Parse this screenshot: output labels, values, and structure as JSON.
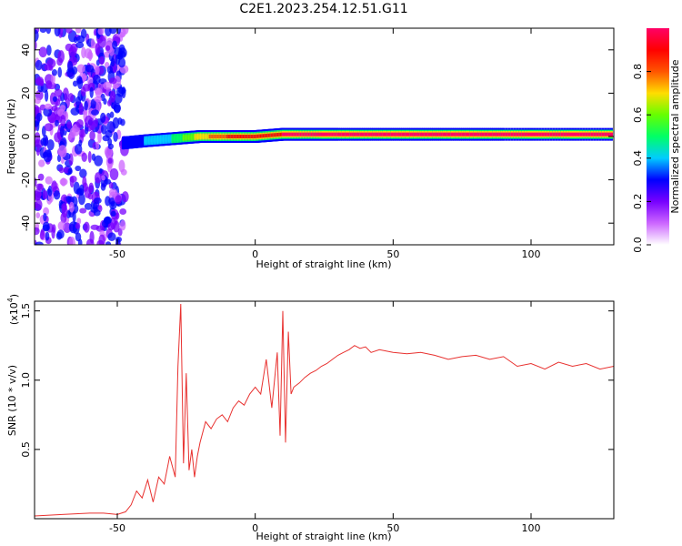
{
  "title": "C2E1.2023.254.12.51.G11",
  "chart_data": [
    {
      "type": "heatmap",
      "xlabel": "Height of straight line (km)",
      "ylabel": "Frequency (Hz)",
      "xlim": [
        -80,
        130
      ],
      "ylim": [
        -50,
        50
      ],
      "xticks": [
        -50,
        0,
        50,
        100
      ],
      "xtick_labels": [
        "-50",
        "0",
        "50",
        "100"
      ],
      "yticks": [
        -40,
        -20,
        0,
        20,
        40
      ],
      "ytick_labels": [
        "-40",
        "-20",
        "0",
        "20",
        "40"
      ],
      "colorbar": {
        "label": "Normalized spectral amplitude",
        "range": [
          0,
          1
        ],
        "ticks": [
          0.0,
          0.2,
          0.4,
          0.6,
          0.8
        ],
        "tick_labels": [
          "0.0",
          "0.2",
          "0.4",
          "0.6",
          "0.8"
        ],
        "colors": [
          "#ffffff",
          "#cc66ff",
          "#7700ff",
          "#0000ff",
          "#00ccff",
          "#00ff66",
          "#66ff00",
          "#ffdd00",
          "#ff5500",
          "#ff0000",
          "#ff0066"
        ]
      },
      "ridge": [
        {
          "x": -48,
          "y": -3,
          "amp": 0.3
        },
        {
          "x": -40,
          "y": -2,
          "amp": 0.35
        },
        {
          "x": -30,
          "y": -1,
          "amp": 0.45
        },
        {
          "x": -20,
          "y": 0,
          "amp": 0.7
        },
        {
          "x": -10,
          "y": 0,
          "amp": 0.85
        },
        {
          "x": 0,
          "y": 0,
          "amp": 0.9
        },
        {
          "x": 10,
          "y": 1,
          "amp": 0.95
        },
        {
          "x": 30,
          "y": 1,
          "amp": 1.0
        },
        {
          "x": 60,
          "y": 1,
          "amp": 1.0
        },
        {
          "x": 90,
          "y": 1,
          "amp": 0.95
        },
        {
          "x": 130,
          "y": 1,
          "amp": 0.95
        }
      ]
    },
    {
      "type": "line",
      "xlabel": "Height of straight line (km)",
      "ylabel": "SNR (10 * v/v)",
      "y_multiplier": "(x10",
      "y_multiplier_exp": "4",
      "y_multiplier_close": ")",
      "xlim": [
        -80,
        130
      ],
      "ylim": [
        0,
        1.57
      ],
      "xticks": [
        -50,
        0,
        50,
        100
      ],
      "xtick_labels": [
        "-50",
        "0",
        "50",
        "100"
      ],
      "yticks": [
        0.5,
        1.0,
        1.5
      ],
      "ytick_labels": [
        "0.5",
        "1.0",
        "1.5"
      ],
      "color": "#e8312f",
      "series": [
        {
          "x": [
            -80,
            -70,
            -60,
            -55,
            -50,
            -47,
            -45,
            -43,
            -41,
            -39,
            -37,
            -35,
            -33,
            -31,
            -29,
            -28,
            -27,
            -26,
            -25,
            -24,
            -23,
            -22,
            -21,
            -20,
            -18,
            -16,
            -14,
            -12,
            -10,
            -8,
            -6,
            -4,
            -2,
            0,
            2,
            4,
            6,
            8,
            9,
            10,
            11,
            12,
            13,
            14,
            16,
            18,
            20,
            22,
            24,
            26,
            28,
            30,
            32,
            34,
            36,
            38,
            40,
            42,
            45,
            50,
            55,
            60,
            65,
            70,
            75,
            80,
            85,
            90,
            95,
            100,
            105,
            110,
            115,
            120,
            125,
            130
          ],
          "y": [
            0.02,
            0.03,
            0.04,
            0.04,
            0.03,
            0.05,
            0.1,
            0.2,
            0.15,
            0.28,
            0.12,
            0.3,
            0.25,
            0.45,
            0.3,
            1.1,
            1.55,
            0.4,
            1.05,
            0.35,
            0.5,
            0.3,
            0.45,
            0.55,
            0.7,
            0.65,
            0.72,
            0.75,
            0.7,
            0.8,
            0.85,
            0.82,
            0.9,
            0.95,
            0.9,
            1.15,
            0.8,
            1.2,
            0.6,
            1.5,
            0.55,
            1.35,
            0.9,
            0.95,
            0.98,
            1.02,
            1.05,
            1.07,
            1.1,
            1.12,
            1.15,
            1.18,
            1.2,
            1.22,
            1.25,
            1.23,
            1.24,
            1.2,
            1.22,
            1.2,
            1.19,
            1.2,
            1.18,
            1.15,
            1.17,
            1.18,
            1.15,
            1.17,
            1.1,
            1.12,
            1.08,
            1.13,
            1.1,
            1.12,
            1.08,
            1.1
          ]
        }
      ]
    }
  ]
}
